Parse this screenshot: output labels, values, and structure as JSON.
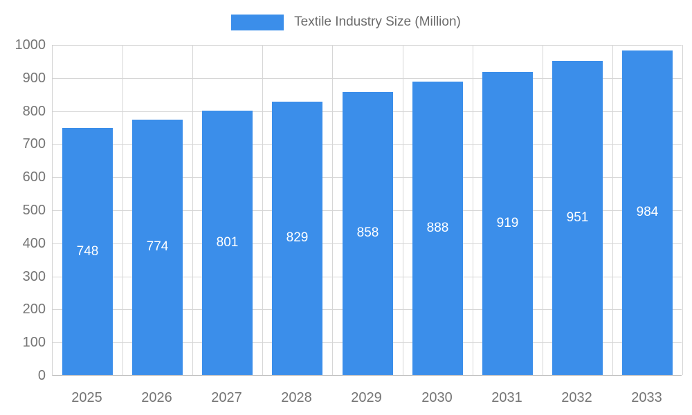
{
  "chart_data": {
    "type": "bar",
    "title": "Textile Industry Size (Million)",
    "categories": [
      "2025",
      "2026",
      "2027",
      "2028",
      "2029",
      "2030",
      "2031",
      "2032",
      "2033"
    ],
    "values": [
      748,
      774,
      801,
      829,
      858,
      888,
      919,
      951,
      984
    ],
    "xlabel": "",
    "ylabel": "",
    "ylim": [
      0,
      1000
    ],
    "ytick_step": 100,
    "yticks": [
      0,
      100,
      200,
      300,
      400,
      500,
      600,
      700,
      800,
      900,
      1000
    ],
    "grid": true,
    "legend_position": "top-center",
    "colors": {
      "bar": "#3B8EEA",
      "bar_label": "#FFFFFF",
      "axis_text": "#757575",
      "legend_text": "#6B6B6B",
      "gridline": "#D6D6D6"
    }
  }
}
